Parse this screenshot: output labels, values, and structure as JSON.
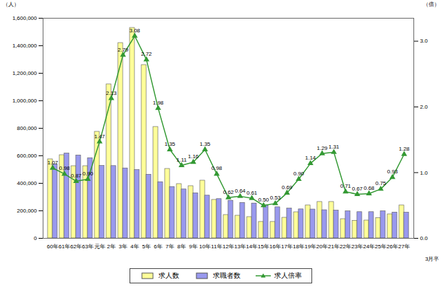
{
  "chart_data": {
    "type": "bar",
    "categories": [
      "60年",
      "61年",
      "62年",
      "63年",
      "元年",
      "2年",
      "3年",
      "4年",
      "5年",
      "6年",
      "7年",
      "8年",
      "9年",
      "10年",
      "11年",
      "12年",
      "13年",
      "14年",
      "15年",
      "16年",
      "17年",
      "18年",
      "19年",
      "20年",
      "21年",
      "22年",
      "23年",
      "24年",
      "25年",
      "26年",
      "27年"
    ],
    "x_label": "3月卒",
    "y_label": "（人）",
    "y2_label": "（倍）",
    "ylim": [
      0,
      1600000
    ],
    "yticks": [
      0,
      {
        "value": 200000,
        "label": "200,000"
      },
      {
        "value": 400000,
        "label": "400,000"
      },
      {
        "value": 600000,
        "label": "600,000"
      },
      {
        "value": 800000,
        "label": "800,000"
      },
      {
        "value": 1000000,
        "label": "1,000,000"
      },
      {
        "value": 1200000,
        "label": "1,200,000"
      },
      {
        "value": 1400000,
        "label": "1,400,000"
      },
      {
        "value": 1600000,
        "label": "1,600,000"
      }
    ],
    "y2lim": [
      0,
      3.35
    ],
    "y2ticks": [
      {
        "value": 0,
        "label": "0.0"
      },
      {
        "value": 1,
        "label": "1.0"
      },
      {
        "value": 2,
        "label": "2.0"
      },
      {
        "value": 3,
        "label": "3.0"
      }
    ],
    "legend": "bottom",
    "series": [
      {
        "name": "求人数",
        "color": "#ffff99",
        "values": [
          575000,
          605000,
          525000,
          525000,
          775000,
          1120000,
          1420000,
          1530000,
          1260000,
          810000,
          505000,
          395000,
          380000,
          420000,
          280000,
          170000,
          165000,
          155000,
          120000,
          120000,
          150000,
          190000,
          240000,
          265000,
          265000,
          140000,
          128000,
          130000,
          148000,
          175000,
          240000
        ]
      },
      {
        "name": "求職者数",
        "color": "#9999ee",
        "values": [
          537000,
          617000,
          603000,
          583000,
          527000,
          526000,
          509000,
          497000,
          463000,
          409000,
          374000,
          356000,
          328000,
          311000,
          286000,
          274000,
          258000,
          254000,
          240000,
          226000,
          217000,
          211000,
          210000,
          205000,
          202000,
          197000,
          191000,
          191000,
          197000,
          188000,
          187000
        ]
      },
      {
        "name": "求人倍率",
        "type": "line",
        "axis": "y2",
        "color": "#339933",
        "marker": "triangle",
        "data_labels": true,
        "values": [
          1.07,
          0.98,
          0.87,
          0.9,
          1.47,
          2.13,
          2.79,
          3.08,
          2.72,
          1.98,
          1.35,
          1.11,
          1.16,
          1.35,
          0.98,
          0.62,
          0.64,
          0.61,
          0.5,
          0.53,
          0.69,
          0.9,
          1.14,
          1.29,
          1.31,
          0.71,
          0.67,
          0.68,
          0.75,
          0.93,
          1.28
        ],
        "value_labels": [
          "1.07",
          "0.98",
          "0.87",
          "0.90",
          "1.47",
          "2.13",
          "2.79",
          "3.08",
          "2.72",
          "1.98",
          "1.35",
          "1.11",
          "1.16",
          "1.35",
          "0.98",
          "0.62",
          "0.64",
          "0.61",
          "0.50",
          "0.53",
          "0.69",
          "0.90",
          "1.14",
          "1.29",
          "1.31",
          "0.71",
          "0.67",
          "0.68",
          "0.75",
          "0.93",
          "1.28"
        ]
      }
    ]
  }
}
